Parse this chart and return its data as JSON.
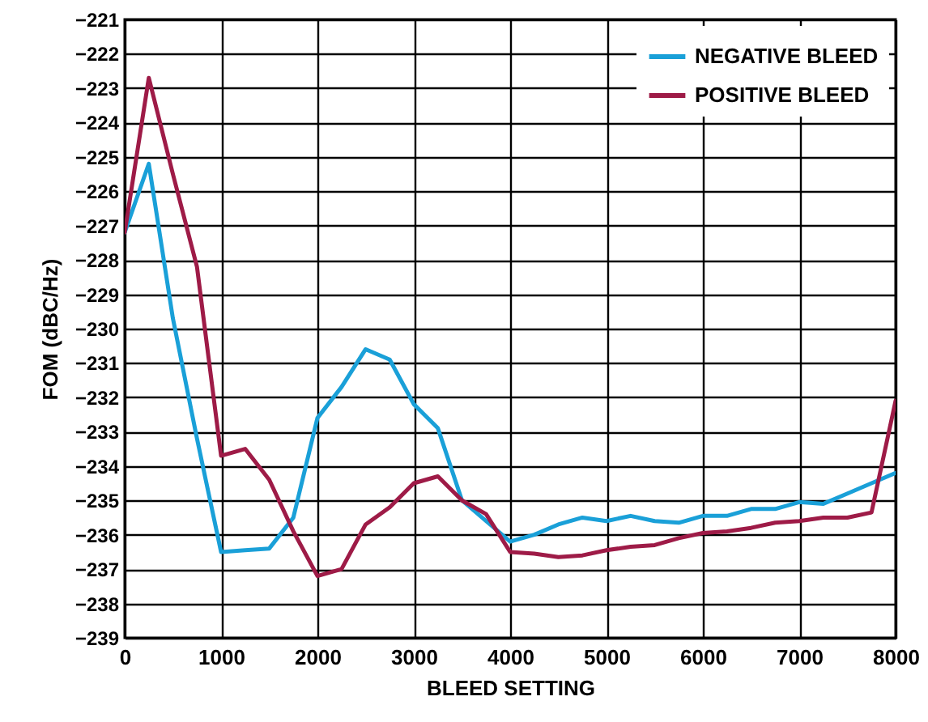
{
  "chart_data": {
    "type": "line",
    "xlabel": "BLEED SETTING",
    "ylabel": "FOM (dBC/Hz)",
    "x": [
      0,
      250,
      500,
      750,
      1000,
      1250,
      1500,
      1750,
      2000,
      2250,
      2500,
      2750,
      3000,
      3250,
      3500,
      3750,
      4000,
      4250,
      4500,
      4750,
      5000,
      5250,
      5500,
      5750,
      6000,
      6250,
      6500,
      6750,
      7000,
      7250,
      7500,
      7750,
      8000
    ],
    "series": [
      {
        "name": "NEGATIVE BLEED",
        "color": "#1aa0d8",
        "values": [
          -227.2,
          -225.2,
          -229.7,
          -233.2,
          -236.5,
          -236.45,
          -236.4,
          -235.5,
          -232.6,
          -231.7,
          -230.6,
          -230.9,
          -232.2,
          -232.9,
          -235.0,
          -235.6,
          -236.2,
          -236.0,
          -235.7,
          -235.5,
          -235.6,
          -235.45,
          -235.6,
          -235.65,
          -235.45,
          -235.45,
          -235.25,
          -235.25,
          -235.05,
          -235.1,
          -234.8,
          -234.5,
          -234.2
        ]
      },
      {
        "name": "POSITIVE BLEED",
        "color": "#9e1b47",
        "values": [
          -227.2,
          -222.7,
          -225.5,
          -228.2,
          -233.7,
          -233.5,
          -234.4,
          -235.9,
          -237.2,
          -237.0,
          -235.7,
          -235.2,
          -234.5,
          -234.3,
          -235.0,
          -235.4,
          -236.5,
          -236.55,
          -236.65,
          -236.6,
          -236.45,
          -236.35,
          -236.3,
          -236.1,
          -235.95,
          -235.9,
          -235.8,
          -235.65,
          -235.6,
          -235.5,
          -235.5,
          -235.35,
          -232.1
        ]
      }
    ],
    "xlim": [
      0,
      8000
    ],
    "xticks": [
      0,
      1000,
      2000,
      3000,
      4000,
      5000,
      6000,
      7000,
      8000
    ],
    "ylim": [
      -239,
      -221
    ],
    "yticks": [
      -239,
      -238,
      -237,
      -236,
      -235,
      -234,
      -233,
      -232,
      -231,
      -230,
      -229,
      -228,
      -227,
      -226,
      -225,
      -224,
      -223,
      -222,
      -221
    ],
    "grid": true,
    "legend": "top right",
    "marker": "none",
    "line_style": "solid"
  }
}
